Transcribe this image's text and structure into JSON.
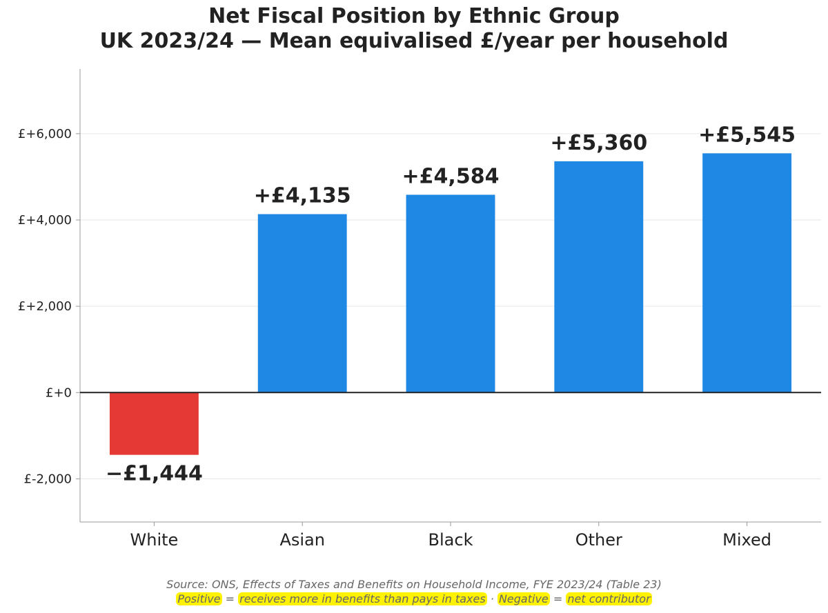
{
  "chart_data": {
    "type": "bar",
    "title": "Net Fiscal Position by Ethnic Group",
    "subtitle": "UK 2023/24 — Mean equivalised £/year per household",
    "xlabel": "",
    "ylabel": "",
    "categories": [
      "White",
      "Asian",
      "Black",
      "Other",
      "Mixed"
    ],
    "values": [
      -1444,
      4135,
      4584,
      5360,
      5545
    ],
    "data_labels": [
      "−£1,444",
      "+£4,135",
      "+£4,584",
      "+£5,360",
      "+£5,545"
    ],
    "ylim": [
      -3000,
      7500
    ],
    "yticks": [
      -2000,
      0,
      2000,
      4000,
      6000
    ],
    "ytick_labels": [
      "£-2,000",
      "£+0",
      "£+2,000",
      "£+4,000",
      "£+6,000"
    ],
    "grid": "horizontal",
    "legend": "none",
    "colors": {
      "positive": "#1f88e5",
      "negative": "#e53935"
    }
  },
  "footnote": {
    "source": "Source: ONS, Effects of Taxes and Benefits on Household Income, FYE 2023/24 (Table 23)",
    "positive_term": "Positive",
    "eq1": " = ",
    "positive_meaning": "receives more in benefits than pays in taxes",
    "sep": " · ",
    "negative_term": "Negative",
    "eq2": " = ",
    "negative_meaning": "net contributor"
  }
}
